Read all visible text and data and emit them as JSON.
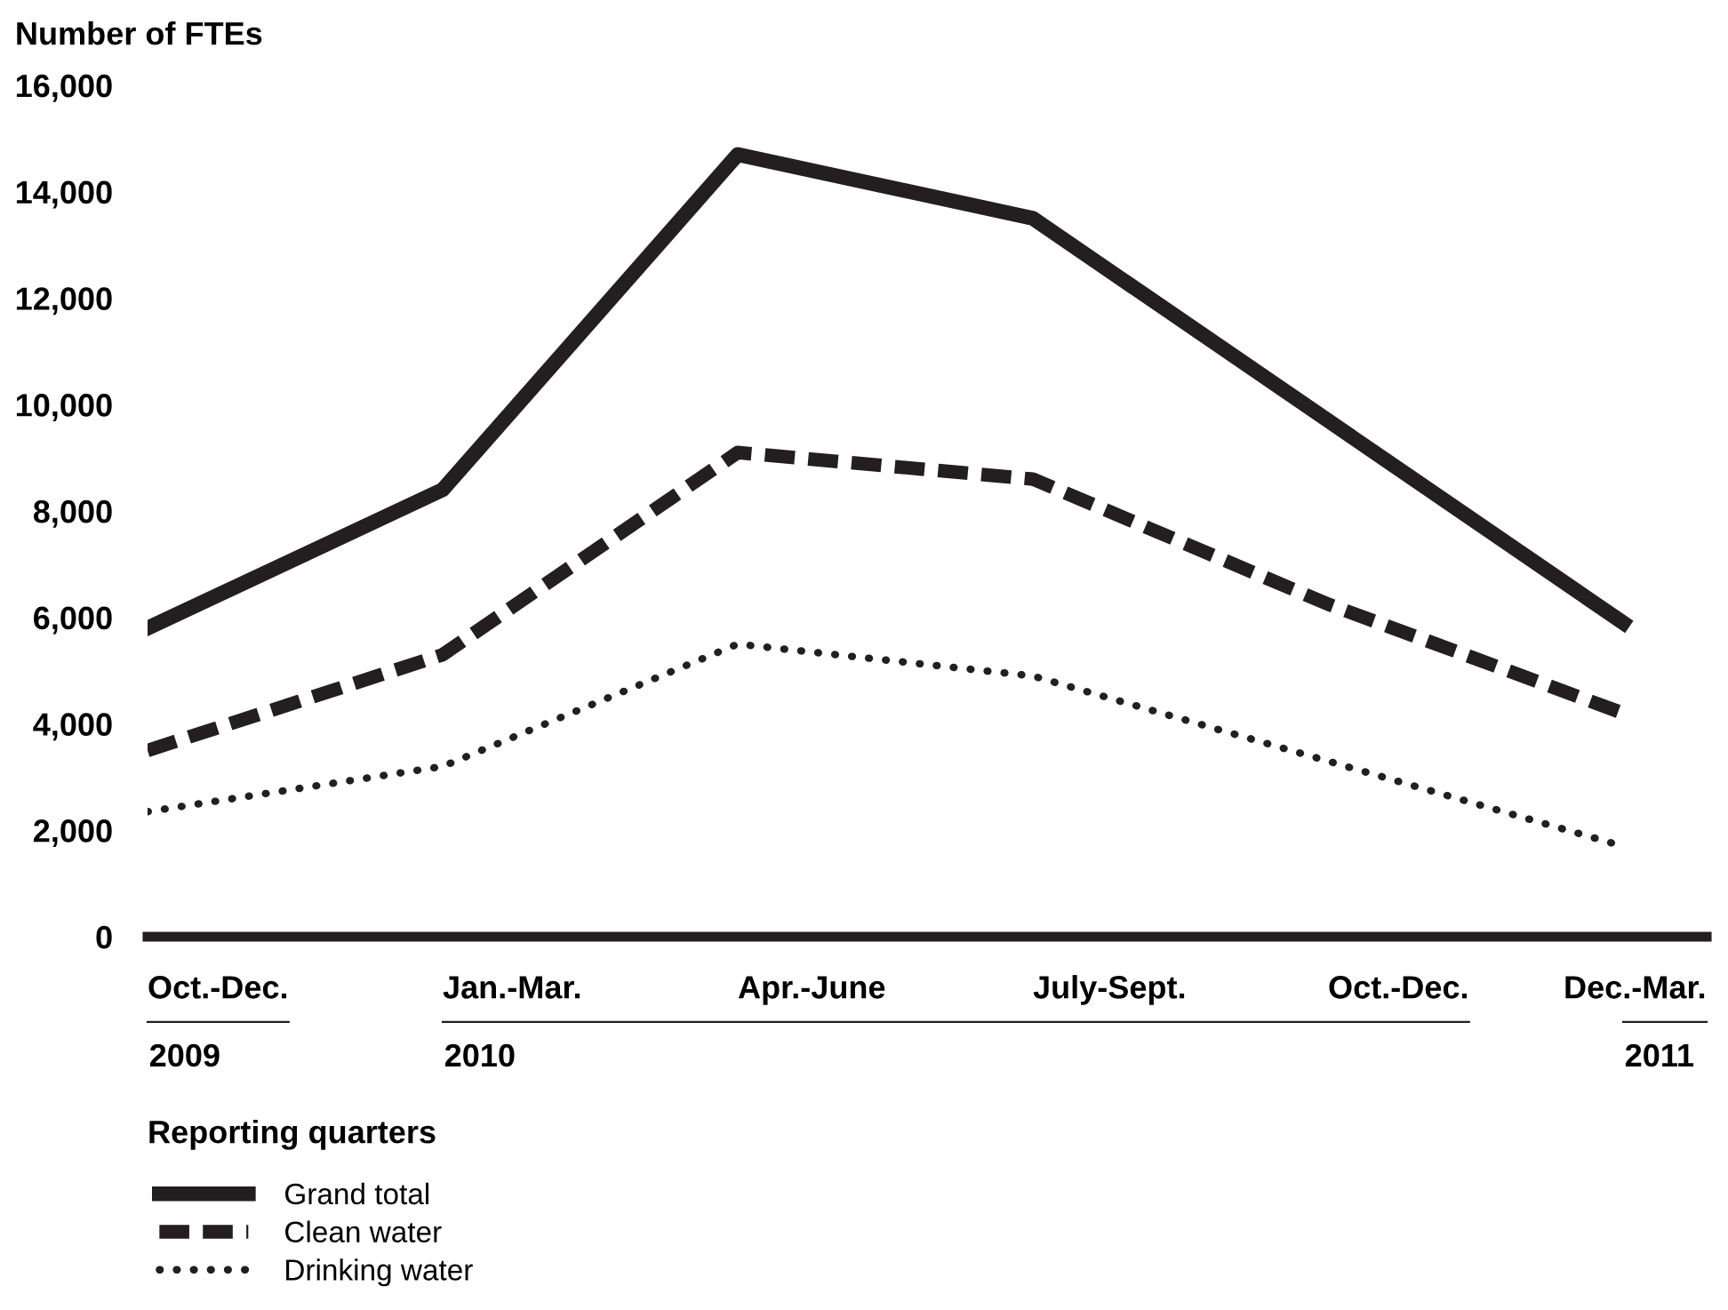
{
  "chart_data": {
    "type": "line",
    "ylabel": "Number of FTEs",
    "xlabel": "Reporting quarters",
    "categories": [
      "Oct.-Dec.\n2009",
      "Jan.-Mar.\n2010",
      "Apr.-June",
      "July-Sept.",
      "Oct.-Dec.",
      "Dec.-Mar.\n2011"
    ],
    "series": [
      {
        "name": "Grand total",
        "color": "#231f20",
        "line_style": "solid",
        "values": [
          5800,
          8400,
          14700,
          13500,
          9700,
          5900
        ]
      },
      {
        "name": "Clean water",
        "color": "#231f20",
        "line_style": "dashed",
        "values": [
          3500,
          5300,
          9100,
          8600,
          6250,
          4200
        ]
      },
      {
        "name": "Drinking water",
        "color": "#231f20",
        "line_style": "dotted",
        "values": [
          2350,
          3200,
          5500,
          4900,
          3300,
          1700
        ]
      }
    ],
    "ylim": [
      0,
      16000
    ],
    "yticks": [
      {
        "value": 0,
        "label": "0"
      },
      {
        "value": 2000,
        "label": "2,000"
      },
      {
        "value": 4000,
        "label": "4,000"
      },
      {
        "value": 6000,
        "label": "6,000"
      },
      {
        "value": 8000,
        "label": "8,000"
      },
      {
        "value": 10000,
        "label": "10,000"
      },
      {
        "value": 12000,
        "label": "12,000"
      },
      {
        "value": 14000,
        "label": "14,000"
      },
      {
        "value": 16000,
        "label": "16,000"
      }
    ],
    "grid": false,
    "legend": "bottom left",
    "marker": "none"
  }
}
